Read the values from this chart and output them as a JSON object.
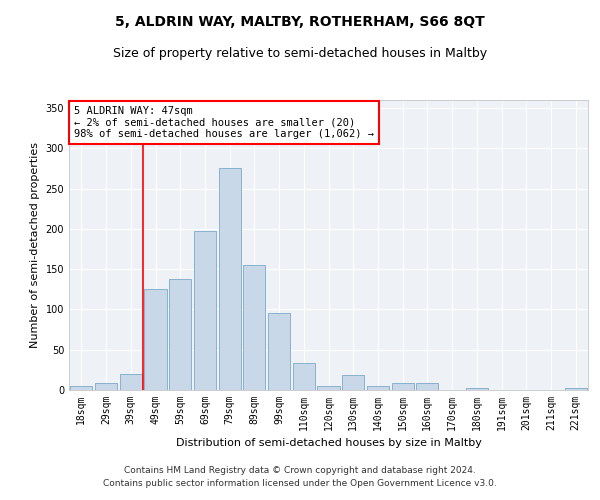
{
  "title": "5, ALDRIN WAY, MALTBY, ROTHERHAM, S66 8QT",
  "subtitle": "Size of property relative to semi-detached houses in Maltby",
  "xlabel": "Distribution of semi-detached houses by size in Maltby",
  "ylabel": "Number of semi-detached properties",
  "bar_labels": [
    "18sqm",
    "29sqm",
    "39sqm",
    "49sqm",
    "59sqm",
    "69sqm",
    "79sqm",
    "89sqm",
    "99sqm",
    "110sqm",
    "120sqm",
    "130sqm",
    "140sqm",
    "150sqm",
    "160sqm",
    "170sqm",
    "180sqm",
    "191sqm",
    "201sqm",
    "211sqm",
    "221sqm"
  ],
  "bar_values": [
    5,
    9,
    20,
    125,
    138,
    198,
    275,
    155,
    95,
    33,
    5,
    19,
    5,
    9,
    9,
    0,
    3,
    0,
    0,
    0,
    2
  ],
  "bar_color": "#c8d8e8",
  "bar_edge_color": "#7aaac8",
  "red_line_x": 3,
  "annotation_text": "5 ALDRIN WAY: 47sqm\n← 2% of semi-detached houses are smaller (20)\n98% of semi-detached houses are larger (1,062) →",
  "footer_text": "Contains HM Land Registry data © Crown copyright and database right 2024.\nContains public sector information licensed under the Open Government Licence v3.0.",
  "ylim": [
    0,
    360
  ],
  "yticks": [
    0,
    50,
    100,
    150,
    200,
    250,
    300,
    350
  ],
  "background_color": "#eef2f7",
  "grid_color": "#ffffff",
  "title_fontsize": 10,
  "subtitle_fontsize": 9,
  "axis_label_fontsize": 8,
  "tick_fontsize": 7,
  "annotation_fontsize": 7.5,
  "footer_fontsize": 6.5
}
